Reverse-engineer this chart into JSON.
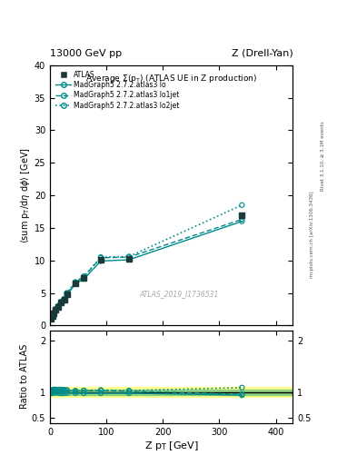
{
  "title_top_left": "13000 GeV pp",
  "title_top_right": "Z (Drell-Yan)",
  "plot_title": "Average $\\Sigma$(p$_T$) (ATLAS UE in Z production)",
  "ylabel_main": "$\\langle$sum p$_T$/d$\\eta$ d$\\phi$$\\rangle$ [GeV]",
  "ylabel_ratio": "Ratio to ATLAS",
  "xlabel": "Z p$_T$ [GeV]",
  "watermark": "ATLAS_2019_I1736531",
  "atlas_x": [
    2,
    4,
    7,
    10,
    15,
    20,
    25,
    30,
    45,
    60,
    90,
    140,
    340
  ],
  "atlas_y": [
    1.1,
    1.4,
    1.9,
    2.4,
    2.9,
    3.5,
    3.9,
    4.8,
    6.5,
    7.3,
    10.1,
    10.3,
    17.0
  ],
  "lo_x": [
    2,
    4,
    7,
    10,
    15,
    20,
    25,
    30,
    45,
    60,
    90,
    140,
    340
  ],
  "lo_y": [
    1.08,
    1.38,
    1.88,
    2.38,
    2.85,
    3.42,
    3.82,
    4.72,
    6.38,
    7.15,
    9.9,
    10.1,
    16.0
  ],
  "lo1jet_x": [
    2,
    4,
    7,
    10,
    15,
    20,
    25,
    30,
    45,
    60,
    90,
    140,
    340
  ],
  "lo1jet_y": [
    1.12,
    1.45,
    1.98,
    2.5,
    3.02,
    3.62,
    4.02,
    4.95,
    6.6,
    7.5,
    10.4,
    10.5,
    16.3
  ],
  "lo2jet_x": [
    2,
    4,
    7,
    10,
    15,
    20,
    25,
    30,
    45,
    60,
    90,
    140,
    340
  ],
  "lo2jet_y": [
    1.13,
    1.46,
    2.0,
    2.52,
    3.05,
    3.68,
    4.08,
    5.0,
    6.68,
    7.55,
    10.5,
    10.6,
    18.5
  ],
  "ratio_lo_y": [
    0.98,
    0.986,
    0.99,
    0.993,
    0.983,
    0.977,
    0.979,
    0.983,
    0.982,
    0.979,
    0.98,
    0.981,
    0.941
  ],
  "ratio_lo1jet_y": [
    1.02,
    1.035,
    1.04,
    1.042,
    1.041,
    1.034,
    1.031,
    1.031,
    1.015,
    1.027,
    1.03,
    1.019,
    0.959
  ],
  "ratio_lo2jet_y": [
    1.03,
    1.043,
    1.053,
    1.05,
    1.052,
    1.051,
    1.046,
    1.042,
    1.028,
    1.034,
    1.04,
    1.029,
    1.088
  ],
  "color_mc": "#008B8B",
  "atlas_color": "#1a3a3a",
  "shade_green": "#7FCC7F",
  "shade_yellow": "#FFFF80",
  "ylim_main": [
    0,
    40
  ],
  "ylim_ratio": [
    0.4,
    2.2
  ],
  "xlim": [
    0,
    430
  ],
  "ratio_yticks": [
    0.5,
    1.0,
    2.0
  ],
  "ratio_yticklabels": [
    "0.5",
    "1",
    "2"
  ],
  "main_yticks": [
    0,
    5,
    10,
    15,
    20,
    25,
    30,
    35,
    40
  ],
  "main_xticks": [
    0,
    100,
    200,
    300,
    400
  ],
  "legend_entries": [
    "ATLAS",
    "MadGraph5 2.7.2.atlas3 lo",
    "MadGraph5 2.7.2.atlas3 lo1jet",
    "MadGraph5 2.7.2.atlas3 lo2jet"
  ],
  "right_text_top": "Rivet 3.1.10, ≥ 3.1M events",
  "right_text_bot": "mcplots.cern.ch [arXiv:1306.3436]"
}
